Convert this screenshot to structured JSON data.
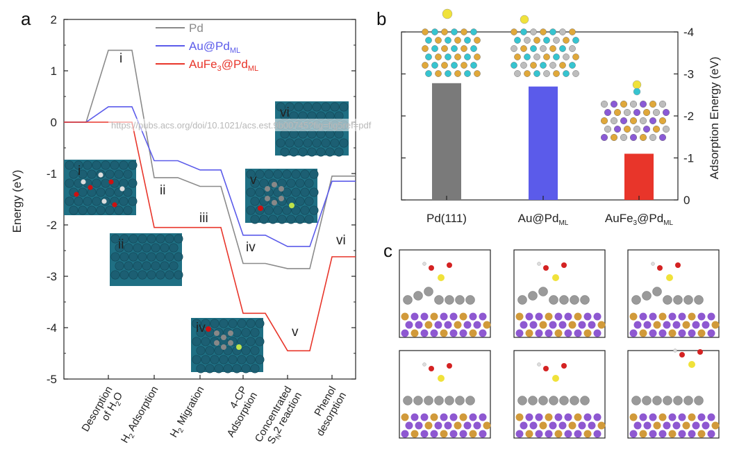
{
  "panels": {
    "a": "a",
    "b": "b",
    "c": "c"
  },
  "watermark": "https://pubs.acs.org/doi/10.1021/acs.est.9b00745?fig=fig5ref=pdf",
  "chart_data": [
    {
      "type": "line",
      "ylabel": "Energy (eV)",
      "ylim": [
        -5,
        2
      ],
      "yticks": [
        "2",
        "1",
        "0",
        "-1",
        "-2",
        "-3",
        "-4",
        "-5"
      ],
      "steps": [
        {
          "main": "Desorption",
          "sub": "of H",
          "subscript": "2",
          "tail": "O"
        },
        {
          "main": "H",
          "subscript": "2",
          "tail": " Adsorption"
        },
        {
          "main": "H",
          "subscript": "2",
          "tail": " Migration"
        },
        {
          "main": "4-CP",
          "second": "Adsorption"
        },
        {
          "main": "Concentrated",
          "second_pre": "S",
          "second_sub": "N",
          "second_tail": "2 reaction"
        },
        {
          "main": "Phenol",
          "second": "desorption"
        }
      ],
      "roman_labels": [
        "i",
        "ii",
        "iii",
        "iv",
        "v",
        "vi"
      ],
      "legend": [
        {
          "name": "Pd",
          "color": "#8a8a8a"
        },
        {
          "name": "Au@Pd",
          "sub": "ML",
          "color": "#5b5bea"
        },
        {
          "name": "AuFe",
          "sub3": "3",
          "tail": "@Pd",
          "sub": "ML",
          "color": "#e8352a"
        }
      ],
      "series": [
        {
          "name": "Pd",
          "color": "#8a8a8a",
          "values": [
            0,
            1.4,
            -1.08,
            -1.25,
            -2.75,
            -2.85,
            -1.05
          ]
        },
        {
          "name": "Au@Pd_ML",
          "color": "#5b5bea",
          "values": [
            0,
            0.3,
            -0.75,
            -0.93,
            -2.2,
            -2.42,
            -1.15
          ]
        },
        {
          "name": "AuFe3@Pd_ML",
          "color": "#e8352a",
          "values": [
            0,
            0,
            -2.05,
            -2.05,
            -3.72,
            -4.45,
            -2.62
          ]
        }
      ]
    },
    {
      "type": "bar",
      "ylabel": "Adsorption Energy (eV)",
      "ylim": [
        0,
        -4
      ],
      "yticks": [
        "-4",
        "-3",
        "-2",
        "-1",
        "0"
      ],
      "categories": [
        {
          "main": "Pd(111)"
        },
        {
          "main": "Au@Pd",
          "sub": "ML"
        },
        {
          "main": "AuFe",
          "sub3": "3",
          "tail": "@Pd",
          "sub": "ML"
        }
      ],
      "values": [
        -2.78,
        -2.7,
        -1.1
      ],
      "colors": [
        "#7a7a7a",
        "#5b5bea",
        "#e8352a"
      ]
    }
  ]
}
